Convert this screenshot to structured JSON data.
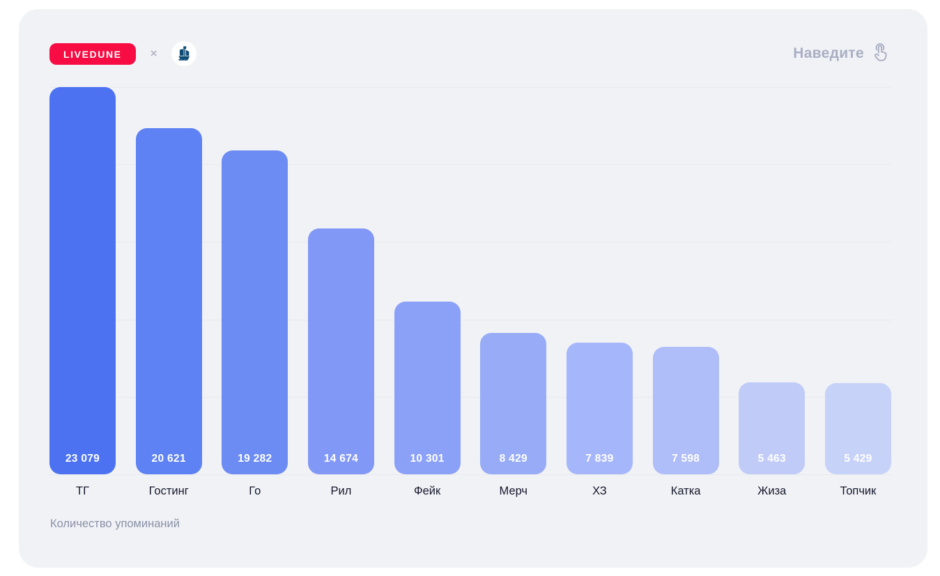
{
  "header": {
    "brand_badge": "LIVEDUNE",
    "separator": "×",
    "partner_icon": "ship-logo",
    "hint": "Наведите"
  },
  "footer": {
    "caption": "Количество упоминаний"
  },
  "colors": {
    "page_bg": "#FFFFFF",
    "card_bg": "#F1F2F6",
    "badge_bg": "#F70D43",
    "badge_text": "#FFFFFF",
    "grid_line": "#E7E9EF",
    "value_text": "#FFFFFF",
    "label_text": "#14182B",
    "hint_text": "#A9AFC3",
    "caption_text": "#8A91A6",
    "ship_icon_color": "#0F4C75",
    "bar_colors": [
      "#4C72F1",
      "#5E81F3",
      "#6C8CF4",
      "#8298F6",
      "#8BA1F7",
      "#97ABF7",
      "#A6B6FA",
      "#AFBDF8",
      "#C0CBF8",
      "#C7D2F8"
    ]
  },
  "chart_data": {
    "type": "bar",
    "title": "",
    "categories": [
      "ТГ",
      "Гостинг",
      "Го",
      "Рил",
      "Фейк",
      "Мерч",
      "ХЗ",
      "Катка",
      "Жиза",
      "Топчик"
    ],
    "values": [
      23079,
      20621,
      19282,
      14674,
      10301,
      8429,
      7839,
      7598,
      5463,
      5429
    ],
    "value_labels": [
      "23 079",
      "20 621",
      "19 282",
      "14 674",
      "10 301",
      "8 429",
      "7 839",
      "7 598",
      "5 463",
      "5 429"
    ],
    "xlabel": "",
    "ylabel": "Количество упоминаний",
    "ylim": [
      0,
      23079
    ],
    "grid": true,
    "gridlines": 6,
    "legend": false
  }
}
